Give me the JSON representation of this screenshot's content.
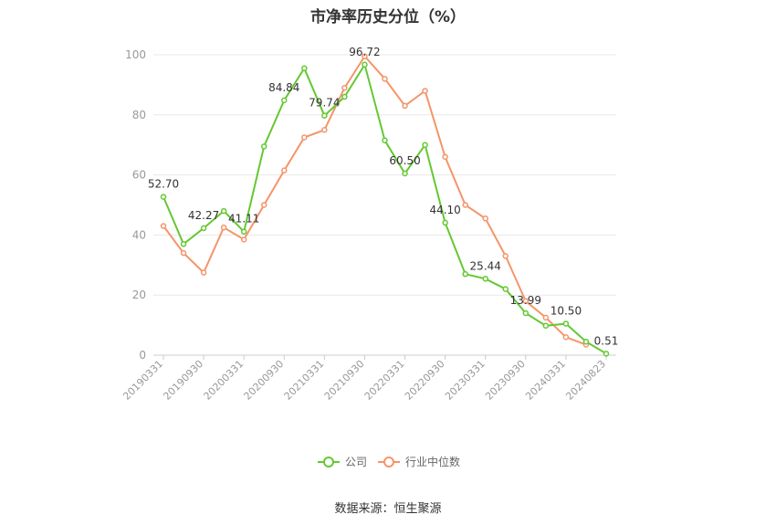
{
  "title": "市净率历史分位（%）",
  "source": "数据来源：恒生聚源",
  "chart_data": {
    "type": "line",
    "ylim": [
      0,
      100
    ],
    "yticks": [
      0,
      20,
      40,
      60,
      80,
      100
    ],
    "xtick_labels": [
      "20190331",
      "20190930",
      "20200331",
      "20200930",
      "20210331",
      "20210930",
      "20220331",
      "20220930",
      "20230331",
      "20230930",
      "20240331",
      "20240823"
    ],
    "x": [
      "20190331",
      "20190630",
      "20190930",
      "20191231",
      "20200331",
      "20200630",
      "20200930",
      "20201231",
      "20210331",
      "20210630",
      "20210930",
      "20211231",
      "20220331",
      "20220630",
      "20220930",
      "20221231",
      "20230331",
      "20230630",
      "20230930",
      "20231231",
      "20240331",
      "20240630",
      "20240823"
    ],
    "series": [
      {
        "name": "公司",
        "color": "#64c832",
        "values": [
          52.7,
          37.0,
          42.27,
          48.0,
          41.11,
          69.5,
          84.84,
          95.5,
          79.74,
          86.0,
          96.72,
          71.5,
          60.5,
          70.0,
          44.1,
          27.0,
          25.44,
          22.0,
          13.99,
          9.8,
          10.5,
          4.5,
          0.51
        ]
      },
      {
        "name": "行业中位数",
        "color": "#f5946a",
        "values": [
          43.0,
          34.0,
          27.5,
          42.5,
          38.5,
          50.0,
          61.5,
          72.5,
          75.0,
          89.0,
          99.5,
          92.0,
          83.0,
          88.0,
          66.0,
          50.0,
          45.5,
          33.0,
          18.0,
          12.5,
          6.0,
          3.5,
          null
        ]
      }
    ],
    "data_labels": [
      {
        "index": 0,
        "text": "52.70"
      },
      {
        "index": 2,
        "text": "42.27"
      },
      {
        "index": 4,
        "text": "41.11"
      },
      {
        "index": 6,
        "text": "84.84"
      },
      {
        "index": 8,
        "text": "79.74"
      },
      {
        "index": 10,
        "text": "96.72"
      },
      {
        "index": 12,
        "text": "60.50"
      },
      {
        "index": 14,
        "text": "44.10"
      },
      {
        "index": 16,
        "text": "25.44"
      },
      {
        "index": 18,
        "text": "13.99"
      },
      {
        "index": 20,
        "text": "10.50"
      },
      {
        "index": 22,
        "text": "0.51"
      }
    ],
    "legend": [
      {
        "name": "公司",
        "color": "#64c832"
      },
      {
        "name": "行业中位数",
        "color": "#f5946a"
      }
    ],
    "grid": true,
    "legend_position": "bottom"
  }
}
